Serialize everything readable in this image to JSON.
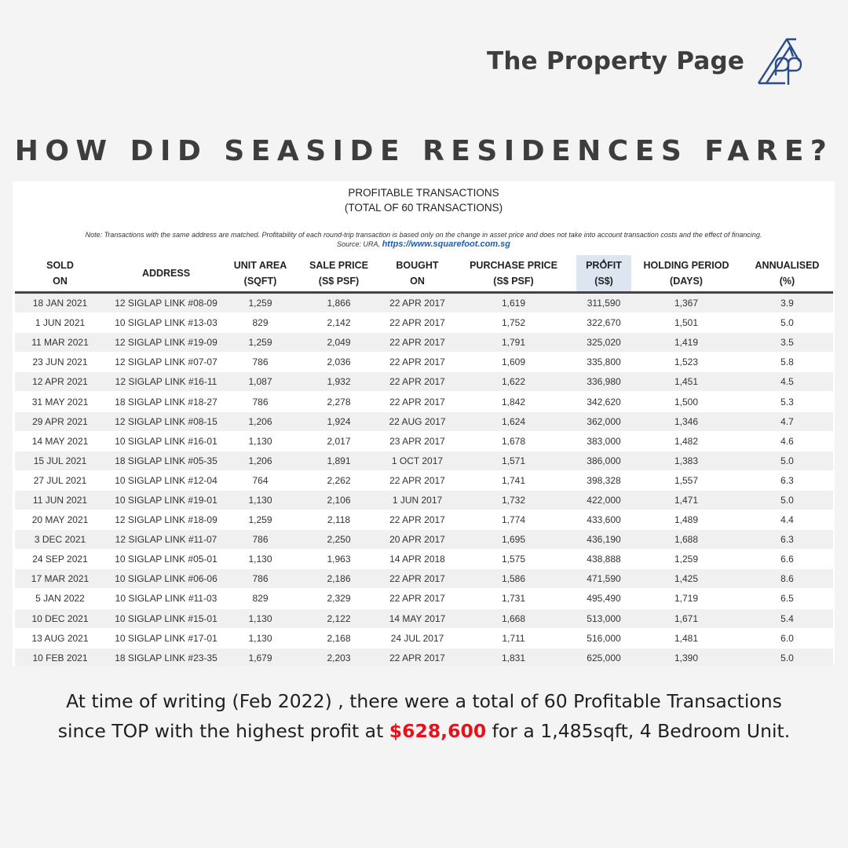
{
  "brand": {
    "name": "The Property Page",
    "logo_icon": "property-page-logo"
  },
  "headline": "HOW DID SEASIDE RESIDENCES FARE?",
  "table_panel": {
    "title_line1": "PROFITABLE TRANSACTIONS",
    "title_line2": "(TOTAL OF 60 TRANSACTIONS)",
    "note": "Note: Transactions with the same address are matched. Profitability of each round-trip transaction is based only on the change in asset price and does not take into account transaction costs and the effect of financing.",
    "source_label": "Source: URA,",
    "source_link": "https://www.squarefoot.com.sg",
    "sort_icon": "sort-ascending-icon",
    "headers": [
      [
        "SOLD",
        "ON"
      ],
      [
        "ADDRESS",
        ""
      ],
      [
        "UNIT AREA",
        "(SQFT)"
      ],
      [
        "SALE PRICE",
        "(S$ PSF)"
      ],
      [
        "BOUGHT",
        "ON"
      ],
      [
        "PURCHASE PRICE",
        "(S$ PSF)"
      ],
      [
        "PROFIT",
        "(S$)"
      ],
      [
        "HOLDING PERIOD",
        "(DAYS)"
      ],
      [
        "ANNUALISED",
        "(%)"
      ]
    ],
    "rows": [
      [
        "18 JAN 2021",
        "12 SIGLAP LINK #08-09",
        "1,259",
        "1,866",
        "22 APR 2017",
        "1,619",
        "311,590",
        "1,367",
        "3.9"
      ],
      [
        "1 JUN 2021",
        "10 SIGLAP LINK #13-03",
        "829",
        "2,142",
        "22 APR 2017",
        "1,752",
        "322,670",
        "1,501",
        "5.0"
      ],
      [
        "11 MAR 2021",
        "12 SIGLAP LINK #19-09",
        "1,259",
        "2,049",
        "22 APR 2017",
        "1,791",
        "325,020",
        "1,419",
        "3.5"
      ],
      [
        "23 JUN 2021",
        "12 SIGLAP LINK #07-07",
        "786",
        "2,036",
        "22 APR 2017",
        "1,609",
        "335,800",
        "1,523",
        "5.8"
      ],
      [
        "12 APR 2021",
        "12 SIGLAP LINK #16-11",
        "1,087",
        "1,932",
        "22 APR 2017",
        "1,622",
        "336,980",
        "1,451",
        "4.5"
      ],
      [
        "31 MAY 2021",
        "18 SIGLAP LINK #18-27",
        "786",
        "2,278",
        "22 APR 2017",
        "1,842",
        "342,620",
        "1,500",
        "5.3"
      ],
      [
        "29 APR 2021",
        "12 SIGLAP LINK #08-15",
        "1,206",
        "1,924",
        "22 AUG 2017",
        "1,624",
        "362,000",
        "1,346",
        "4.7"
      ],
      [
        "14 MAY 2021",
        "10 SIGLAP LINK #16-01",
        "1,130",
        "2,017",
        "23 APR 2017",
        "1,678",
        "383,000",
        "1,482",
        "4.6"
      ],
      [
        "15 JUL 2021",
        "18 SIGLAP LINK #05-35",
        "1,206",
        "1,891",
        "1 OCT 2017",
        "1,571",
        "386,000",
        "1,383",
        "5.0"
      ],
      [
        "27 JUL 2021",
        "10 SIGLAP LINK #12-04",
        "764",
        "2,262",
        "22 APR 2017",
        "1,741",
        "398,328",
        "1,557",
        "6.3"
      ],
      [
        "11 JUN 2021",
        "10 SIGLAP LINK #19-01",
        "1,130",
        "2,106",
        "1 JUN 2017",
        "1,732",
        "422,000",
        "1,471",
        "5.0"
      ],
      [
        "20 MAY 2021",
        "12 SIGLAP LINK #18-09",
        "1,259",
        "2,118",
        "22 APR 2017",
        "1,774",
        "433,600",
        "1,489",
        "4.4"
      ],
      [
        "3 DEC 2021",
        "12 SIGLAP LINK #11-07",
        "786",
        "2,250",
        "20 APR 2017",
        "1,695",
        "436,190",
        "1,688",
        "6.3"
      ],
      [
        "24 SEP 2021",
        "10 SIGLAP LINK #05-01",
        "1,130",
        "1,963",
        "14 APR 2018",
        "1,575",
        "438,888",
        "1,259",
        "6.6"
      ],
      [
        "17 MAR 2021",
        "10 SIGLAP LINK #06-06",
        "786",
        "2,186",
        "22 APR 2017",
        "1,586",
        "471,590",
        "1,425",
        "8.6"
      ],
      [
        "5 JAN 2022",
        "10 SIGLAP LINK #11-03",
        "829",
        "2,329",
        "22 APR 2017",
        "1,731",
        "495,490",
        "1,719",
        "6.5"
      ],
      [
        "10 DEC 2021",
        "10 SIGLAP LINK #15-01",
        "1,130",
        "2,122",
        "14 MAY 2017",
        "1,668",
        "513,000",
        "1,671",
        "5.4"
      ],
      [
        "13 AUG 2021",
        "10 SIGLAP LINK #17-01",
        "1,130",
        "2,168",
        "24 JUL 2017",
        "1,711",
        "516,000",
        "1,481",
        "6.0"
      ],
      [
        "10 FEB 2021",
        "18 SIGLAP LINK #23-35",
        "1,679",
        "2,203",
        "22 APR 2017",
        "1,831",
        "625,000",
        "1,390",
        "5.0"
      ]
    ]
  },
  "caption": {
    "line1": "At time of writing (Feb 2022) , there were a total of 60 Profitable Transactions",
    "line2_before": "since TOP with the highest profit at ",
    "highlight": "$628,600",
    "line2_after": " for a 1,485sqft, 4 Bedroom Unit.",
    "highlight_color": "#e5121b"
  }
}
